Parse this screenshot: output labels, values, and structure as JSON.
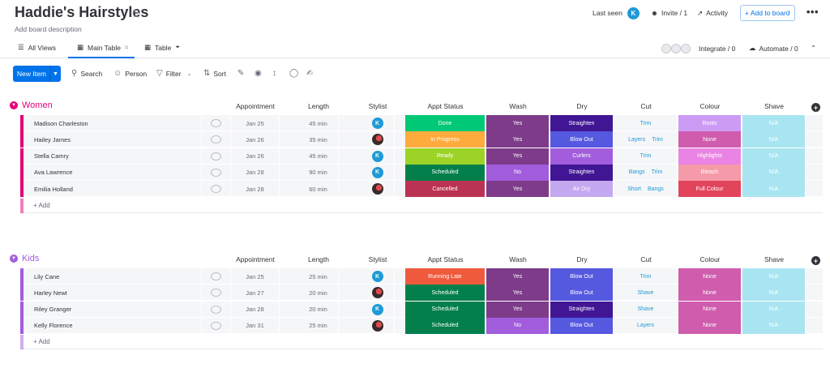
{
  "board": {
    "title": "Haddie's Hairstyles",
    "description": "Add board description"
  },
  "header": {
    "last_seen": "Last seen",
    "avatar_letter": "K",
    "invite": "Invite / 1",
    "activity": "Activity",
    "add_to_board": "+ Add to board"
  },
  "tabs": {
    "all_views": "All Views",
    "main_table": "Main Table",
    "table": "Table",
    "integrate": "Integrate / 0",
    "automate": "Automate / 0"
  },
  "toolbar": {
    "new_item": "New Item",
    "search": "Search",
    "person": "Person",
    "filter": "Filter",
    "sort": "Sort"
  },
  "columns": [
    "Appointment",
    "Length",
    "Stylist",
    "Appt Status",
    "Wash",
    "Dry",
    "Cut",
    "Colour",
    "Shave"
  ],
  "add_label": "+ Add",
  "groups": [
    {
      "name": "Women",
      "color": "#e2007a",
      "rows": [
        {
          "name": "Madison Charleston",
          "appt": "Jan 25",
          "length": "45 min",
          "stylist": "K",
          "status": "Done",
          "status_color": "#00c875",
          "wash": "Yes",
          "wash_color": "#7e3b8a",
          "dry": "Straighten",
          "dry_color": "#401694",
          "cut": [
            "Trim"
          ],
          "colour": "Roots",
          "colour_color": "#cc9cf4",
          "shave": "N/A"
        },
        {
          "name": "Hailey James",
          "appt": "Jan 26",
          "length": "35 min",
          "stylist": "P",
          "status": "In Progress",
          "status_color": "#fdab3d",
          "wash": "Yes",
          "wash_color": "#7e3b8a",
          "dry": "Blow Out",
          "dry_color": "#5559df",
          "cut": [
            "Layers",
            "Trim"
          ],
          "colour": "None",
          "colour_color": "#d05cae",
          "shave": "N/A"
        },
        {
          "name": "Stella Camry",
          "appt": "Jan 26",
          "length": "45 min",
          "stylist": "K",
          "status": "Ready",
          "status_color": "#9cd326",
          "wash": "Yes",
          "wash_color": "#7e3b8a",
          "dry": "Curlers",
          "dry_color": "#a25ddc",
          "cut": [
            "Trim"
          ],
          "colour": "Highlights",
          "colour_color": "#ea84e4",
          "shave": "N/A"
        },
        {
          "name": "Ava Lawrence",
          "appt": "Jan 28",
          "length": "90 min",
          "stylist": "K",
          "status": "Scheduled",
          "status_color": "#037f4c",
          "wash": "No",
          "wash_color": "#a25ddc",
          "dry": "Straighten",
          "dry_color": "#401694",
          "cut": [
            "Bangs",
            "Trim"
          ],
          "colour": "Bleach",
          "colour_color": "#f49aa8",
          "shave": "N/A"
        },
        {
          "name": "Emilia Holland",
          "appt": "Jan 28",
          "length": "60 min",
          "stylist": "P",
          "status": "Cancelled",
          "status_color": "#bb3354",
          "wash": "Yes",
          "wash_color": "#7e3b8a",
          "dry": "Air Dry",
          "dry_color": "#c4a8f0",
          "cut": [
            "Short",
            "Bangs"
          ],
          "colour": "Full Colour",
          "colour_color": "#e2445c",
          "shave": "N/A"
        }
      ]
    },
    {
      "name": "Kids",
      "color": "#a25ddc",
      "rows": [
        {
          "name": "Lily Cane",
          "appt": "Jan 25",
          "length": "25 min",
          "stylist": "K",
          "status": "Running Late",
          "status_color": "#ef5a3c",
          "wash": "Yes",
          "wash_color": "#7e3b8a",
          "dry": "Blow Out",
          "dry_color": "#5559df",
          "cut": [
            "Trim"
          ],
          "colour": "None",
          "colour_color": "#d05cae",
          "shave": "N/A"
        },
        {
          "name": "Harley Newt",
          "appt": "Jan 27",
          "length": "20 min",
          "stylist": "P",
          "status": "Scheduled",
          "status_color": "#037f4c",
          "wash": "Yes",
          "wash_color": "#7e3b8a",
          "dry": "Blow Out",
          "dry_color": "#5559df",
          "cut": [
            "Shave"
          ],
          "colour": "None",
          "colour_color": "#d05cae",
          "shave": "N/A"
        },
        {
          "name": "Riley Granger",
          "appt": "Jan 28",
          "length": "20 min",
          "stylist": "K",
          "status": "Scheduled",
          "status_color": "#037f4c",
          "wash": "Yes",
          "wash_color": "#7e3b8a",
          "dry": "Straighten",
          "dry_color": "#401694",
          "cut": [
            "Shave"
          ],
          "colour": "None",
          "colour_color": "#d05cae",
          "shave": "N/A"
        },
        {
          "name": "Kelly Florence",
          "appt": "Jan 31",
          "length": "25 min",
          "stylist": "P",
          "status": "Scheduled",
          "status_color": "#037f4c",
          "wash": "No",
          "wash_color": "#a25ddc",
          "dry": "Blow Out",
          "dry_color": "#5559df",
          "cut": [
            "Layers"
          ],
          "colour": "None",
          "colour_color": "#d05cae",
          "shave": "N/A"
        }
      ]
    }
  ],
  "icons": {
    "star": "star-icon",
    "chat": "chat-bubble-icon",
    "plus": "add-column-icon"
  }
}
